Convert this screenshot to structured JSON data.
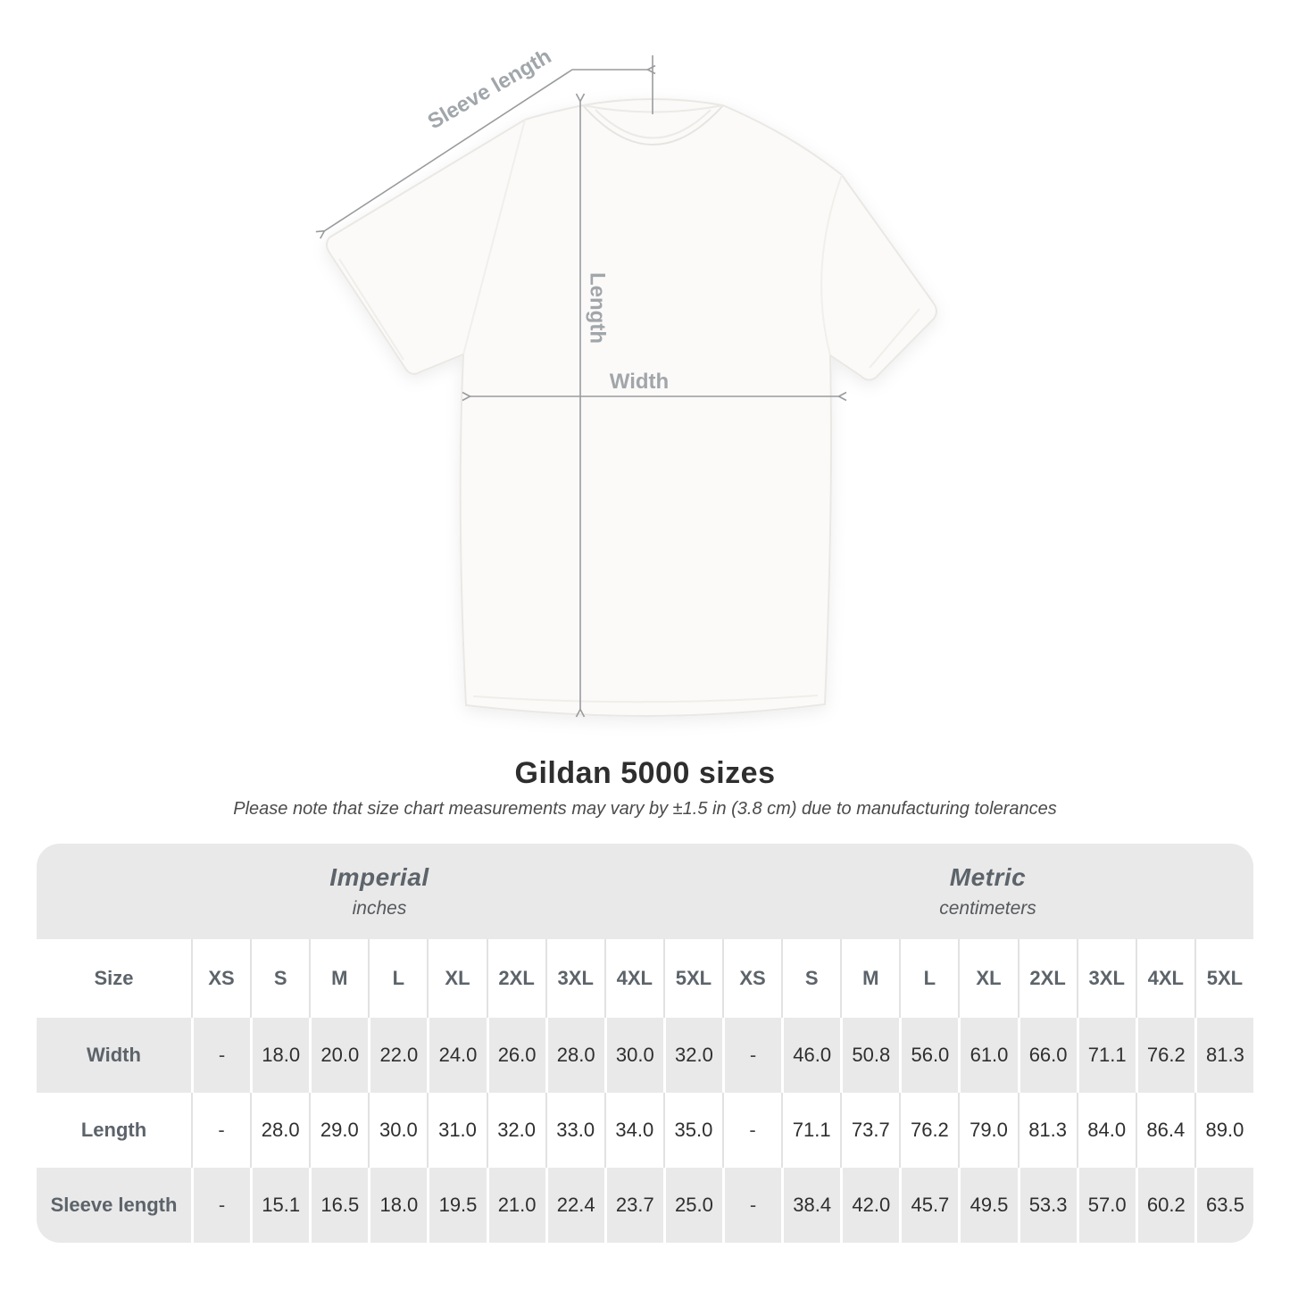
{
  "diagram": {
    "labels": {
      "sleeve_length": "Sleeve length",
      "length": "Length",
      "width": "Width"
    },
    "colors": {
      "arrow": "#999b9d",
      "label_text": "#a1a6aa",
      "shirt_fill": "#fbfaf9",
      "shirt_outline": "#eae8e4"
    }
  },
  "heading": {
    "title": "Gildan 5000 sizes",
    "note": "Please note that size chart measurements may vary by ±1.5 in (3.8 cm) due to manufacturing tolerances"
  },
  "size_table": {
    "unit_groups": [
      {
        "label": "Imperial",
        "sublabel": "inches"
      },
      {
        "label": "Metric",
        "sublabel": "centimeters"
      }
    ],
    "corner_label": "Size",
    "size_columns": [
      "XS",
      "S",
      "M",
      "L",
      "XL",
      "2XL",
      "3XL",
      "4XL",
      "5XL"
    ],
    "rows": [
      {
        "label": "Width",
        "imperial": [
          "-",
          "18.0",
          "20.0",
          "22.0",
          "24.0",
          "26.0",
          "28.0",
          "30.0",
          "32.0"
        ],
        "metric": [
          "-",
          "46.0",
          "50.8",
          "56.0",
          "61.0",
          "66.0",
          "71.1",
          "76.2",
          "81.3"
        ]
      },
      {
        "label": "Length",
        "imperial": [
          "-",
          "28.0",
          "29.0",
          "30.0",
          "31.0",
          "32.0",
          "33.0",
          "34.0",
          "35.0"
        ],
        "metric": [
          "-",
          "71.1",
          "73.7",
          "76.2",
          "79.0",
          "81.3",
          "84.0",
          "86.4",
          "89.0"
        ]
      },
      {
        "label": "Sleeve length",
        "imperial": [
          "-",
          "15.1",
          "16.5",
          "18.0",
          "19.5",
          "21.0",
          "22.4",
          "23.7",
          "25.0"
        ],
        "metric": [
          "-",
          "38.4",
          "42.0",
          "45.7",
          "49.5",
          "53.3",
          "57.0",
          "60.2",
          "63.5"
        ]
      }
    ],
    "colors": {
      "band_background": "#e9e9e9",
      "alt_row_background": "#e9e9e9",
      "divider_on_white": "#e2e2e2",
      "divider_on_gray": "#ffffff",
      "header_text": "#5c636a",
      "value_text": "#2f2f2f"
    }
  }
}
